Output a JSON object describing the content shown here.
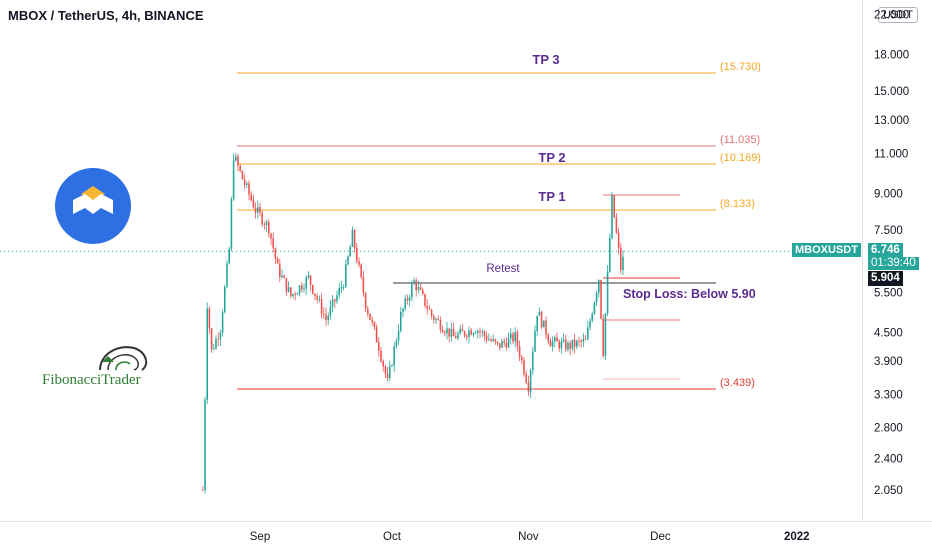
{
  "header": {
    "title": "MBOX / TetherUS, 4h, BINANCE",
    "currency": "USDT"
  },
  "price_scale": {
    "ticks": [
      "22.000",
      "18.000",
      "15.000",
      "13.000",
      "11.000",
      "9.000",
      "7.500",
      "5.500",
      "4.500",
      "3.900",
      "3.300",
      "2.800",
      "2.400",
      "2.050"
    ],
    "symbol_label": "MBOXUSDT",
    "last_price": "6.746",
    "countdown": "01:39:40",
    "stop_price": "5.904"
  },
  "time_axis": {
    "ticks": [
      "Sep",
      "Oct",
      "Nov",
      "Dec",
      "2022"
    ]
  },
  "annotations": {
    "tp3_label": "TP 3",
    "tp2_label": "TP 2",
    "tp1_label": "TP 1",
    "retest_label": "Retest",
    "stop_loss_label": "Stop Loss: Below 5.90",
    "level_tp3": "(15.730)",
    "level_upper": "(11.035)",
    "level_tp2": "(10.169)",
    "level_tp1": "(8.133)",
    "level_low": "(3.439)"
  },
  "logos": {
    "fibonacci_text": "FibonacciTrader",
    "mbox_logo": "mbox-logo",
    "fib_logo": "fibonacci-trader-logo"
  },
  "colors": {
    "up": "#26a69a",
    "down": "#ef5350",
    "orange_level": "#f5a623",
    "red_level": "#e53935",
    "label_purple": "#5b2d90",
    "pink_level": "#e57373",
    "current_price": "#26a69a"
  },
  "chart_data": {
    "type": "candlestick",
    "title": "MBOX / TetherUS, 4h, BINANCE",
    "y_scale": "log",
    "ylim": [
      1.95,
      22.5
    ],
    "x_ticks": [
      "Sep",
      "Oct",
      "Nov",
      "Dec",
      "2022"
    ],
    "price_path": [
      {
        "date": "2021-08-19",
        "price": 2.05
      },
      {
        "date": "2021-08-20",
        "price": 5.2
      },
      {
        "date": "2021-08-21",
        "price": 4.1
      },
      {
        "date": "2021-08-23",
        "price": 4.6
      },
      {
        "date": "2021-08-25",
        "price": 6.8
      },
      {
        "date": "2021-08-26",
        "price": 10.9
      },
      {
        "date": "2021-08-28",
        "price": 9.7
      },
      {
        "date": "2021-08-31",
        "price": 8.3
      },
      {
        "date": "2021-09-03",
        "price": 7.6
      },
      {
        "date": "2021-09-05",
        "price": 6.2
      },
      {
        "date": "2021-09-08",
        "price": 5.4
      },
      {
        "date": "2021-09-12",
        "price": 5.9
      },
      {
        "date": "2021-09-16",
        "price": 4.8
      },
      {
        "date": "2021-09-20",
        "price": 5.8
      },
      {
        "date": "2021-09-22",
        "price": 7.3
      },
      {
        "date": "2021-09-25",
        "price": 5.2
      },
      {
        "date": "2021-09-28",
        "price": 4.2
      },
      {
        "date": "2021-09-30",
        "price": 3.5
      },
      {
        "date": "2021-10-03",
        "price": 4.9
      },
      {
        "date": "2021-10-06",
        "price": 5.8
      },
      {
        "date": "2021-10-10",
        "price": 4.9
      },
      {
        "date": "2021-10-15",
        "price": 4.4
      },
      {
        "date": "2021-10-20",
        "price": 4.6
      },
      {
        "date": "2021-10-25",
        "price": 4.2
      },
      {
        "date": "2021-10-29",
        "price": 4.4
      },
      {
        "date": "2021-11-01",
        "price": 3.45
      },
      {
        "date": "2021-11-03",
        "price": 5.0
      },
      {
        "date": "2021-11-06",
        "price": 4.3
      },
      {
        "date": "2021-11-10",
        "price": 4.2
      },
      {
        "date": "2021-11-14",
        "price": 4.3
      },
      {
        "date": "2021-11-17",
        "price": 5.9
      },
      {
        "date": "2021-11-18",
        "price": 4.1
      },
      {
        "date": "2021-11-20",
        "price": 8.7
      },
      {
        "date": "2021-11-22",
        "price": 6.2
      },
      {
        "date": "2021-11-23",
        "price": 6.746
      }
    ]
  }
}
